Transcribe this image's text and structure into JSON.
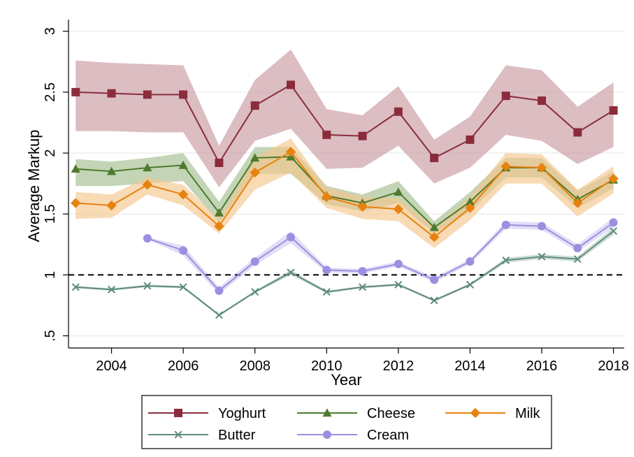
{
  "chart_data": {
    "type": "line",
    "title": "",
    "xlabel": "Year",
    "ylabel": "Average Markup",
    "xlim": [
      2002.8,
      2018.3
    ],
    "ylim": [
      0.4,
      3.05
    ],
    "x_ticks": [
      2004,
      2006,
      2008,
      2010,
      2012,
      2014,
      2016,
      2018
    ],
    "x_tick_labels": [
      "2004",
      "2006",
      "2008",
      "2010",
      "2012",
      "2014",
      "2016",
      "2018"
    ],
    "y_ticks": [
      0.5,
      1,
      1.5,
      2,
      2.5,
      3
    ],
    "y_tick_labels": [
      ".5",
      "1",
      "1.5",
      "2",
      "2.5",
      "3"
    ],
    "grid": "horizontal",
    "reference_line": {
      "y": 1,
      "style": "dashed",
      "color": "#000000"
    },
    "legend": {
      "position": "bottom-center",
      "columns": 3
    },
    "series": [
      {
        "name": "Yoghurt",
        "color": "#8b2c3c",
        "band_color": "#c79aa2",
        "marker": "square",
        "x": [
          2003,
          2004,
          2005,
          2006,
          2007,
          2008,
          2009,
          2010,
          2011,
          2012,
          2013,
          2014,
          2015,
          2016,
          2017,
          2018
        ],
        "y": [
          2.5,
          2.49,
          2.48,
          2.48,
          1.92,
          2.39,
          2.56,
          2.15,
          2.14,
          2.34,
          1.96,
          2.11,
          2.47,
          2.43,
          2.17,
          2.35
        ],
        "ci_lower": [
          2.18,
          2.18,
          2.17,
          2.17,
          1.72,
          2.1,
          2.2,
          1.87,
          1.88,
          2.06,
          1.75,
          1.88,
          2.15,
          2.1,
          1.91,
          2.05
        ],
        "ci_upper": [
          2.76,
          2.74,
          2.73,
          2.72,
          2.06,
          2.6,
          2.85,
          2.36,
          2.31,
          2.55,
          2.11,
          2.3,
          2.72,
          2.68,
          2.38,
          2.58
        ]
      },
      {
        "name": "Cheese",
        "color": "#4e7a2e",
        "band_color": "#a3bf8f",
        "marker": "triangle",
        "x": [
          2003,
          2004,
          2005,
          2006,
          2007,
          2008,
          2009,
          2010,
          2011,
          2012,
          2013,
          2014,
          2015,
          2016,
          2017,
          2018
        ],
        "y": [
          1.87,
          1.85,
          1.88,
          1.9,
          1.51,
          1.96,
          1.97,
          1.65,
          1.59,
          1.68,
          1.39,
          1.6,
          1.88,
          1.88,
          1.62,
          1.78
        ],
        "ci_lower": [
          1.73,
          1.73,
          1.75,
          1.77,
          1.43,
          1.83,
          1.83,
          1.58,
          1.52,
          1.59,
          1.34,
          1.52,
          1.8,
          1.8,
          1.55,
          1.71
        ],
        "ci_upper": [
          1.95,
          1.93,
          1.96,
          2.0,
          1.6,
          2.05,
          2.05,
          1.73,
          1.66,
          1.77,
          1.44,
          1.68,
          1.96,
          1.96,
          1.69,
          1.85
        ]
      },
      {
        "name": "Milk",
        "color": "#e8820e",
        "band_color": "#f5c68d",
        "marker": "diamond",
        "x": [
          2003,
          2004,
          2005,
          2006,
          2007,
          2008,
          2009,
          2010,
          2011,
          2012,
          2013,
          2014,
          2015,
          2016,
          2017,
          2018
        ],
        "y": [
          1.59,
          1.57,
          1.74,
          1.66,
          1.4,
          1.84,
          2.01,
          1.64,
          1.56,
          1.54,
          1.31,
          1.55,
          1.89,
          1.88,
          1.59,
          1.79
        ],
        "ci_lower": [
          1.46,
          1.47,
          1.66,
          1.57,
          1.34,
          1.7,
          1.84,
          1.55,
          1.46,
          1.44,
          1.22,
          1.45,
          1.75,
          1.75,
          1.48,
          1.67
        ],
        "ci_upper": [
          1.68,
          1.66,
          1.8,
          1.74,
          1.46,
          1.96,
          2.12,
          1.72,
          1.64,
          1.63,
          1.39,
          1.64,
          2.0,
          1.99,
          1.7,
          1.89
        ]
      },
      {
        "name": "Butter",
        "color": "#5e8c78",
        "band_color": "#b6cdc3",
        "marker": "x",
        "x": [
          2003,
          2004,
          2005,
          2006,
          2007,
          2008,
          2009,
          2010,
          2011,
          2012,
          2013,
          2014,
          2015,
          2016,
          2017,
          2018
        ],
        "y": [
          0.9,
          0.88,
          0.91,
          0.9,
          0.67,
          0.86,
          1.02,
          0.86,
          0.9,
          0.92,
          0.79,
          0.92,
          1.12,
          1.15,
          1.13,
          1.36
        ],
        "ci_lower": [
          0.89,
          0.87,
          0.9,
          0.89,
          0.66,
          0.85,
          1.0,
          0.85,
          0.89,
          0.91,
          0.78,
          0.91,
          1.1,
          1.13,
          1.11,
          1.33
        ],
        "ci_upper": [
          0.91,
          0.89,
          0.92,
          0.91,
          0.68,
          0.87,
          1.04,
          0.87,
          0.91,
          0.93,
          0.8,
          0.93,
          1.14,
          1.17,
          1.15,
          1.39
        ]
      },
      {
        "name": "Cream",
        "color": "#9b8fe0",
        "band_color": "#d2ccf2",
        "marker": "circle",
        "x": [
          2005,
          2006,
          2007,
          2008,
          2009,
          2010,
          2011,
          2012,
          2013,
          2014,
          2015,
          2016,
          2017,
          2018
        ],
        "y": [
          1.3,
          1.2,
          0.87,
          1.11,
          1.31,
          1.04,
          1.03,
          1.09,
          0.96,
          1.11,
          1.41,
          1.4,
          1.22,
          1.43
        ],
        "ci_lower": [
          1.29,
          1.16,
          0.84,
          1.08,
          1.26,
          1.02,
          1.01,
          1.07,
          0.94,
          1.09,
          1.38,
          1.37,
          1.19,
          1.39
        ],
        "ci_upper": [
          1.31,
          1.24,
          0.9,
          1.14,
          1.36,
          1.06,
          1.05,
          1.11,
          0.98,
          1.13,
          1.44,
          1.43,
          1.25,
          1.47
        ]
      }
    ]
  }
}
